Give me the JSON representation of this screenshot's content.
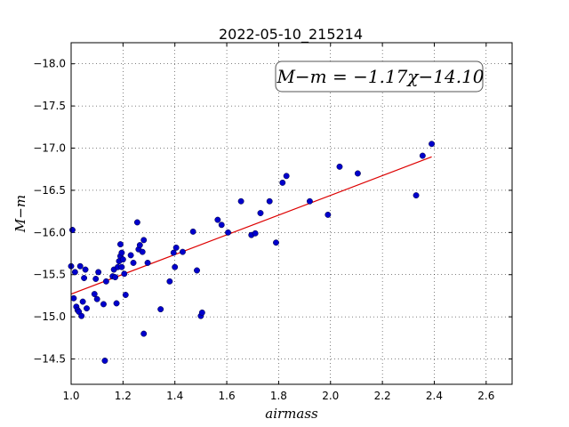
{
  "chart_data": {
    "type": "scatter",
    "title": "2022-05-10_215214",
    "xlabel": "airmass",
    "ylabel": "M−m",
    "xlim": [
      1.0,
      2.7
    ],
    "ylim": [
      -18.25,
      -14.2
    ],
    "y_inverted": true,
    "grid": true,
    "x_ticks": [
      1.0,
      1.2,
      1.4,
      1.6,
      1.8,
      2.0,
      2.2,
      2.4,
      2.6
    ],
    "x_tick_labels": [
      "1.0",
      "1.2",
      "1.4",
      "1.6",
      "1.8",
      "2.0",
      "2.2",
      "2.4",
      "2.6"
    ],
    "y_ticks": [
      -14.5,
      -15.0,
      -15.5,
      -16.0,
      -16.5,
      -17.0,
      -17.5,
      -18.0
    ],
    "y_tick_labels": [
      "−14.5",
      "−15.0",
      "−15.5",
      "−16.0",
      "−16.5",
      "−17.0",
      "−17.5",
      "−18.0"
    ],
    "annotation": "M−m = −1.17χ−14.10",
    "point_color": "#0000cc",
    "fit_color": "#dd0000",
    "fit_line": {
      "slope": -1.17,
      "intercept": -14.1,
      "x_range": [
        1.0,
        2.39
      ]
    },
    "points": [
      [
        1.0,
        -15.6
      ],
      [
        1.005,
        -16.03
      ],
      [
        1.01,
        -15.22
      ],
      [
        1.015,
        -15.53
      ],
      [
        1.02,
        -15.12
      ],
      [
        1.025,
        -15.08
      ],
      [
        1.03,
        -15.06
      ],
      [
        1.035,
        -15.6
      ],
      [
        1.04,
        -15.01
      ],
      [
        1.045,
        -15.18
      ],
      [
        1.05,
        -15.46
      ],
      [
        1.055,
        -15.56
      ],
      [
        1.06,
        -15.1
      ],
      [
        1.09,
        -15.27
      ],
      [
        1.095,
        -15.45
      ],
      [
        1.1,
        -15.21
      ],
      [
        1.105,
        -15.53
      ],
      [
        1.125,
        -15.15
      ],
      [
        1.13,
        -14.48
      ],
      [
        1.135,
        -15.42
      ],
      [
        1.16,
        -15.48
      ],
      [
        1.165,
        -15.56
      ],
      [
        1.17,
        -15.47
      ],
      [
        1.175,
        -15.16
      ],
      [
        1.18,
        -15.59
      ],
      [
        1.185,
        -15.66
      ],
      [
        1.19,
        -15.72
      ],
      [
        1.19,
        -15.86
      ],
      [
        1.195,
        -15.59
      ],
      [
        1.195,
        -15.76
      ],
      [
        1.2,
        -15.68
      ],
      [
        1.205,
        -15.51
      ],
      [
        1.21,
        -15.26
      ],
      [
        1.23,
        -15.73
      ],
      [
        1.24,
        -15.64
      ],
      [
        1.255,
        -16.12
      ],
      [
        1.26,
        -15.8
      ],
      [
        1.265,
        -15.85
      ],
      [
        1.275,
        -15.77
      ],
      [
        1.28,
        -15.91
      ],
      [
        1.28,
        -14.8
      ],
      [
        1.295,
        -15.64
      ],
      [
        1.345,
        -15.09
      ],
      [
        1.38,
        -15.42
      ],
      [
        1.395,
        -15.76
      ],
      [
        1.4,
        -15.59
      ],
      [
        1.405,
        -15.82
      ],
      [
        1.43,
        -15.77
      ],
      [
        1.47,
        -16.01
      ],
      [
        1.485,
        -15.55
      ],
      [
        1.5,
        -15.01
      ],
      [
        1.505,
        -15.05
      ],
      [
        1.565,
        -16.15
      ],
      [
        1.58,
        -16.09
      ],
      [
        1.605,
        -16.0
      ],
      [
        1.655,
        -16.37
      ],
      [
        1.695,
        -15.97
      ],
      [
        1.71,
        -15.99
      ],
      [
        1.73,
        -16.23
      ],
      [
        1.765,
        -16.37
      ],
      [
        1.79,
        -15.88
      ],
      [
        1.815,
        -16.59
      ],
      [
        1.83,
        -16.67
      ],
      [
        1.92,
        -16.37
      ],
      [
        1.99,
        -16.21
      ],
      [
        2.035,
        -16.78
      ],
      [
        2.105,
        -16.7
      ],
      [
        2.33,
        -16.44
      ],
      [
        2.355,
        -16.91
      ],
      [
        2.39,
        -17.05
      ]
    ]
  }
}
